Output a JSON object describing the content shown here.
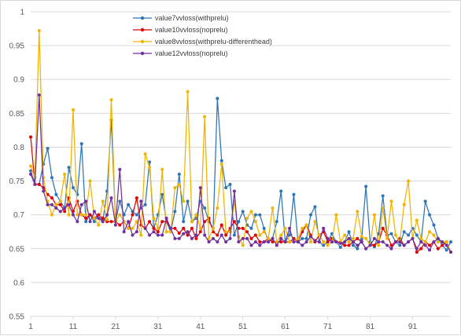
{
  "chart_data": {
    "type": "line",
    "title": "",
    "xlabel": "",
    "ylabel": "",
    "ylim": [
      0.55,
      1.0
    ],
    "xlim": [
      1,
      100
    ],
    "x_tick_labels": [
      "1",
      "11",
      "21",
      "31",
      "41",
      "51",
      "61",
      "71",
      "81",
      "91"
    ],
    "y_tick_labels": [
      "0.55",
      "0.6",
      "0.65",
      "0.7",
      "0.75",
      "0.8",
      "0.85",
      "0.9",
      "0.95",
      "1"
    ],
    "grid": "horizontal",
    "legend_position": "top-center",
    "series": [
      {
        "name": "value7vvloss(withprelu)",
        "color": "#2e75b6",
        "values": [
          0.765,
          0.745,
          0.745,
          0.775,
          0.798,
          0.755,
          0.73,
          0.72,
          0.71,
          0.77,
          0.74,
          0.73,
          0.805,
          0.69,
          0.7,
          0.69,
          0.7,
          0.69,
          0.735,
          0.84,
          0.69,
          0.72,
          0.7,
          0.715,
          0.705,
          0.7,
          0.71,
          0.715,
          0.778,
          0.68,
          0.7,
          0.73,
          0.69,
          0.675,
          0.705,
          0.76,
          0.69,
          0.72,
          0.69,
          0.695,
          0.72,
          0.71,
          0.69,
          0.68,
          0.872,
          0.78,
          0.74,
          0.745,
          0.67,
          0.69,
          0.705,
          0.685,
          0.68,
          0.7,
          0.7,
          0.68,
          0.66,
          0.665,
          0.69,
          0.735,
          0.66,
          0.67,
          0.73,
          0.66,
          0.665,
          0.665,
          0.7,
          0.712,
          0.66,
          0.655,
          0.66,
          0.672,
          0.66,
          0.652,
          0.66,
          0.675,
          0.655,
          0.65,
          0.664,
          0.742,
          0.66,
          0.653,
          0.672,
          0.728,
          0.67,
          0.672,
          0.66,
          0.655,
          0.675,
          0.67,
          0.68,
          0.67,
          0.66,
          0.72,
          0.7,
          0.685,
          0.665,
          0.655,
          0.648,
          0.66
        ]
      },
      {
        "name": "value10vvloss(noprelu)",
        "color": "#e00000",
        "values": [
          0.815,
          0.745,
          0.745,
          0.74,
          0.73,
          0.725,
          0.715,
          0.715,
          0.705,
          0.725,
          0.705,
          0.72,
          0.7,
          0.695,
          0.7,
          0.695,
          0.7,
          0.695,
          0.69,
          0.69,
          0.69,
          0.685,
          0.69,
          0.68,
          0.7,
          0.725,
          0.685,
          0.68,
          0.69,
          0.68,
          0.675,
          0.69,
          0.69,
          0.68,
          0.68,
          0.673,
          0.68,
          0.67,
          0.68,
          0.665,
          0.675,
          0.69,
          0.695,
          0.675,
          0.67,
          0.685,
          0.67,
          0.68,
          0.69,
          0.68,
          0.68,
          0.675,
          0.665,
          0.67,
          0.66,
          0.66,
          0.665,
          0.66,
          0.66,
          0.66,
          0.66,
          0.66,
          0.665,
          0.66,
          0.675,
          0.685,
          0.67,
          0.66,
          0.67,
          0.675,
          0.66,
          0.665,
          0.66,
          0.66,
          0.655,
          0.655,
          0.66,
          0.665,
          0.66,
          0.65,
          0.655,
          0.655,
          0.66,
          0.68,
          0.67,
          0.655,
          0.66,
          0.665,
          0.655,
          0.66,
          0.665,
          0.645,
          0.65,
          0.66,
          0.655,
          0.66,
          0.65,
          0.655,
          0.66,
          0.645
        ]
      },
      {
        "name": "value8vvloss(withprelu-differenthead)",
        "color": "#f0b400",
        "values": [
          0.772,
          0.755,
          0.972,
          0.755,
          0.72,
          0.7,
          0.715,
          0.72,
          0.76,
          0.7,
          0.855,
          0.7,
          0.7,
          0.7,
          0.75,
          0.695,
          0.685,
          0.72,
          0.693,
          0.87,
          0.69,
          0.7,
          0.69,
          0.68,
          0.68,
          0.69,
          0.67,
          0.79,
          0.77,
          0.695,
          0.68,
          0.767,
          0.675,
          0.675,
          0.74,
          0.745,
          0.72,
          0.882,
          0.69,
          0.7,
          0.68,
          0.845,
          0.665,
          0.68,
          0.71,
          0.775,
          0.675,
          0.675,
          0.72,
          0.668,
          0.655,
          0.695,
          0.705,
          0.69,
          0.67,
          0.675,
          0.665,
          0.71,
          0.66,
          0.67,
          0.68,
          0.66,
          0.66,
          0.665,
          0.68,
          0.685,
          0.66,
          0.69,
          0.67,
          0.66,
          0.655,
          0.66,
          0.7,
          0.66,
          0.67,
          0.66,
          0.665,
          0.705,
          0.668,
          0.665,
          0.655,
          0.7,
          0.655,
          0.71,
          0.665,
          0.72,
          0.67,
          0.66,
          0.715,
          0.75,
          0.665,
          0.692,
          0.665,
          0.66,
          0.675,
          0.67,
          0.66,
          0.66,
          0.66,
          0.645
        ]
      },
      {
        "name": "value12vvloss(noprelu)",
        "color": "#7030a0",
        "values": [
          0.76,
          0.745,
          0.877,
          0.735,
          0.715,
          0.715,
          0.71,
          0.705,
          0.71,
          0.715,
          0.7,
          0.69,
          0.715,
          0.72,
          0.69,
          0.705,
          0.695,
          0.69,
          0.7,
          0.725,
          0.685,
          0.767,
          0.675,
          0.69,
          0.67,
          0.675,
          0.72,
          0.68,
          0.67,
          0.675,
          0.67,
          0.67,
          0.695,
          0.68,
          0.665,
          0.665,
          0.672,
          0.675,
          0.665,
          0.67,
          0.74,
          0.67,
          0.66,
          0.665,
          0.66,
          0.67,
          0.66,
          0.665,
          0.735,
          0.66,
          0.665,
          0.665,
          0.655,
          0.66,
          0.655,
          0.66,
          0.66,
          0.665,
          0.655,
          0.665,
          0.66,
          0.68,
          0.66,
          0.66,
          0.655,
          0.66,
          0.668,
          0.662,
          0.66,
          0.68,
          0.665,
          0.66,
          0.66,
          0.658,
          0.66,
          0.665,
          0.66,
          0.655,
          0.66,
          0.65,
          0.655,
          0.665,
          0.66,
          0.66,
          0.655,
          0.65,
          0.66,
          0.66,
          0.655,
          0.66,
          0.665,
          0.65,
          0.66,
          0.655,
          0.648,
          0.66,
          0.665,
          0.66,
          0.655,
          0.645
        ]
      }
    ]
  }
}
